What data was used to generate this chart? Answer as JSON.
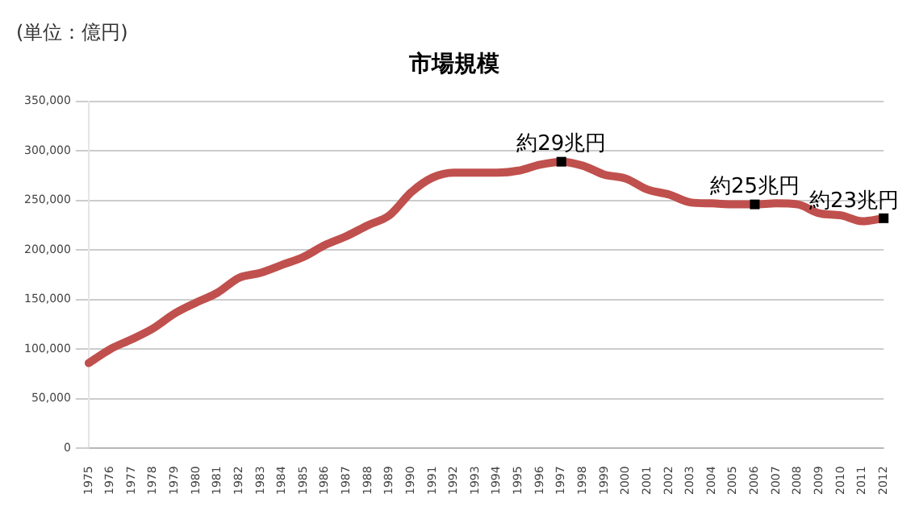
{
  "chart_data": {
    "type": "line",
    "title": "市場規模",
    "categories": [
      "1975",
      "1976",
      "1977",
      "1978",
      "1979",
      "1980",
      "1981",
      "1982",
      "1983",
      "1984",
      "1985",
      "1986",
      "1987",
      "1988",
      "1989",
      "1990",
      "1991",
      "1992",
      "1993",
      "1994",
      "1995",
      "1996",
      "1997",
      "1998",
      "1999",
      "2000",
      "2001",
      "2002",
      "2003",
      "2004",
      "2005",
      "2006",
      "2007",
      "2008",
      "2009",
      "2010",
      "2011",
      "2012"
    ],
    "series": [
      {
        "color": "#c0504d",
        "values": [
          86000,
          100000,
          110000,
          121000,
          136000,
          147000,
          157000,
          172000,
          177000,
          185000,
          193000,
          205000,
          214000,
          225000,
          235000,
          258000,
          273000,
          278000,
          278000,
          278000,
          280000,
          286000,
          289000,
          285000,
          276000,
          272000,
          261000,
          256000,
          248000,
          247000,
          246000,
          246000,
          247000,
          246000,
          237000,
          235000,
          229000,
          232000
        ]
      }
    ],
    "ylim": [
      0,
      350000
    ],
    "yticks": [
      {
        "value": 0,
        "label": "0"
      },
      {
        "value": 50000,
        "label": "50,000"
      },
      {
        "value": 100000,
        "label": "100,000"
      },
      {
        "value": 150000,
        "label": "150,000"
      },
      {
        "value": 200000,
        "label": "200,000"
      },
      {
        "value": 250000,
        "label": "250,000"
      },
      {
        "value": 300000,
        "label": "300,000"
      },
      {
        "value": 350000,
        "label": "350,000"
      }
    ],
    "grid": "y",
    "legend": false,
    "marker": "none",
    "line_style": "solid",
    "annotations": [
      "(単位：億円)",
      {
        "text": "約29兆円",
        "x": "1997",
        "y": 289000
      },
      {
        "text": "約25兆円",
        "x": "2006",
        "y": 246000
      },
      {
        "text": "約23兆円",
        "x": "2012",
        "y": 232000
      }
    ]
  }
}
